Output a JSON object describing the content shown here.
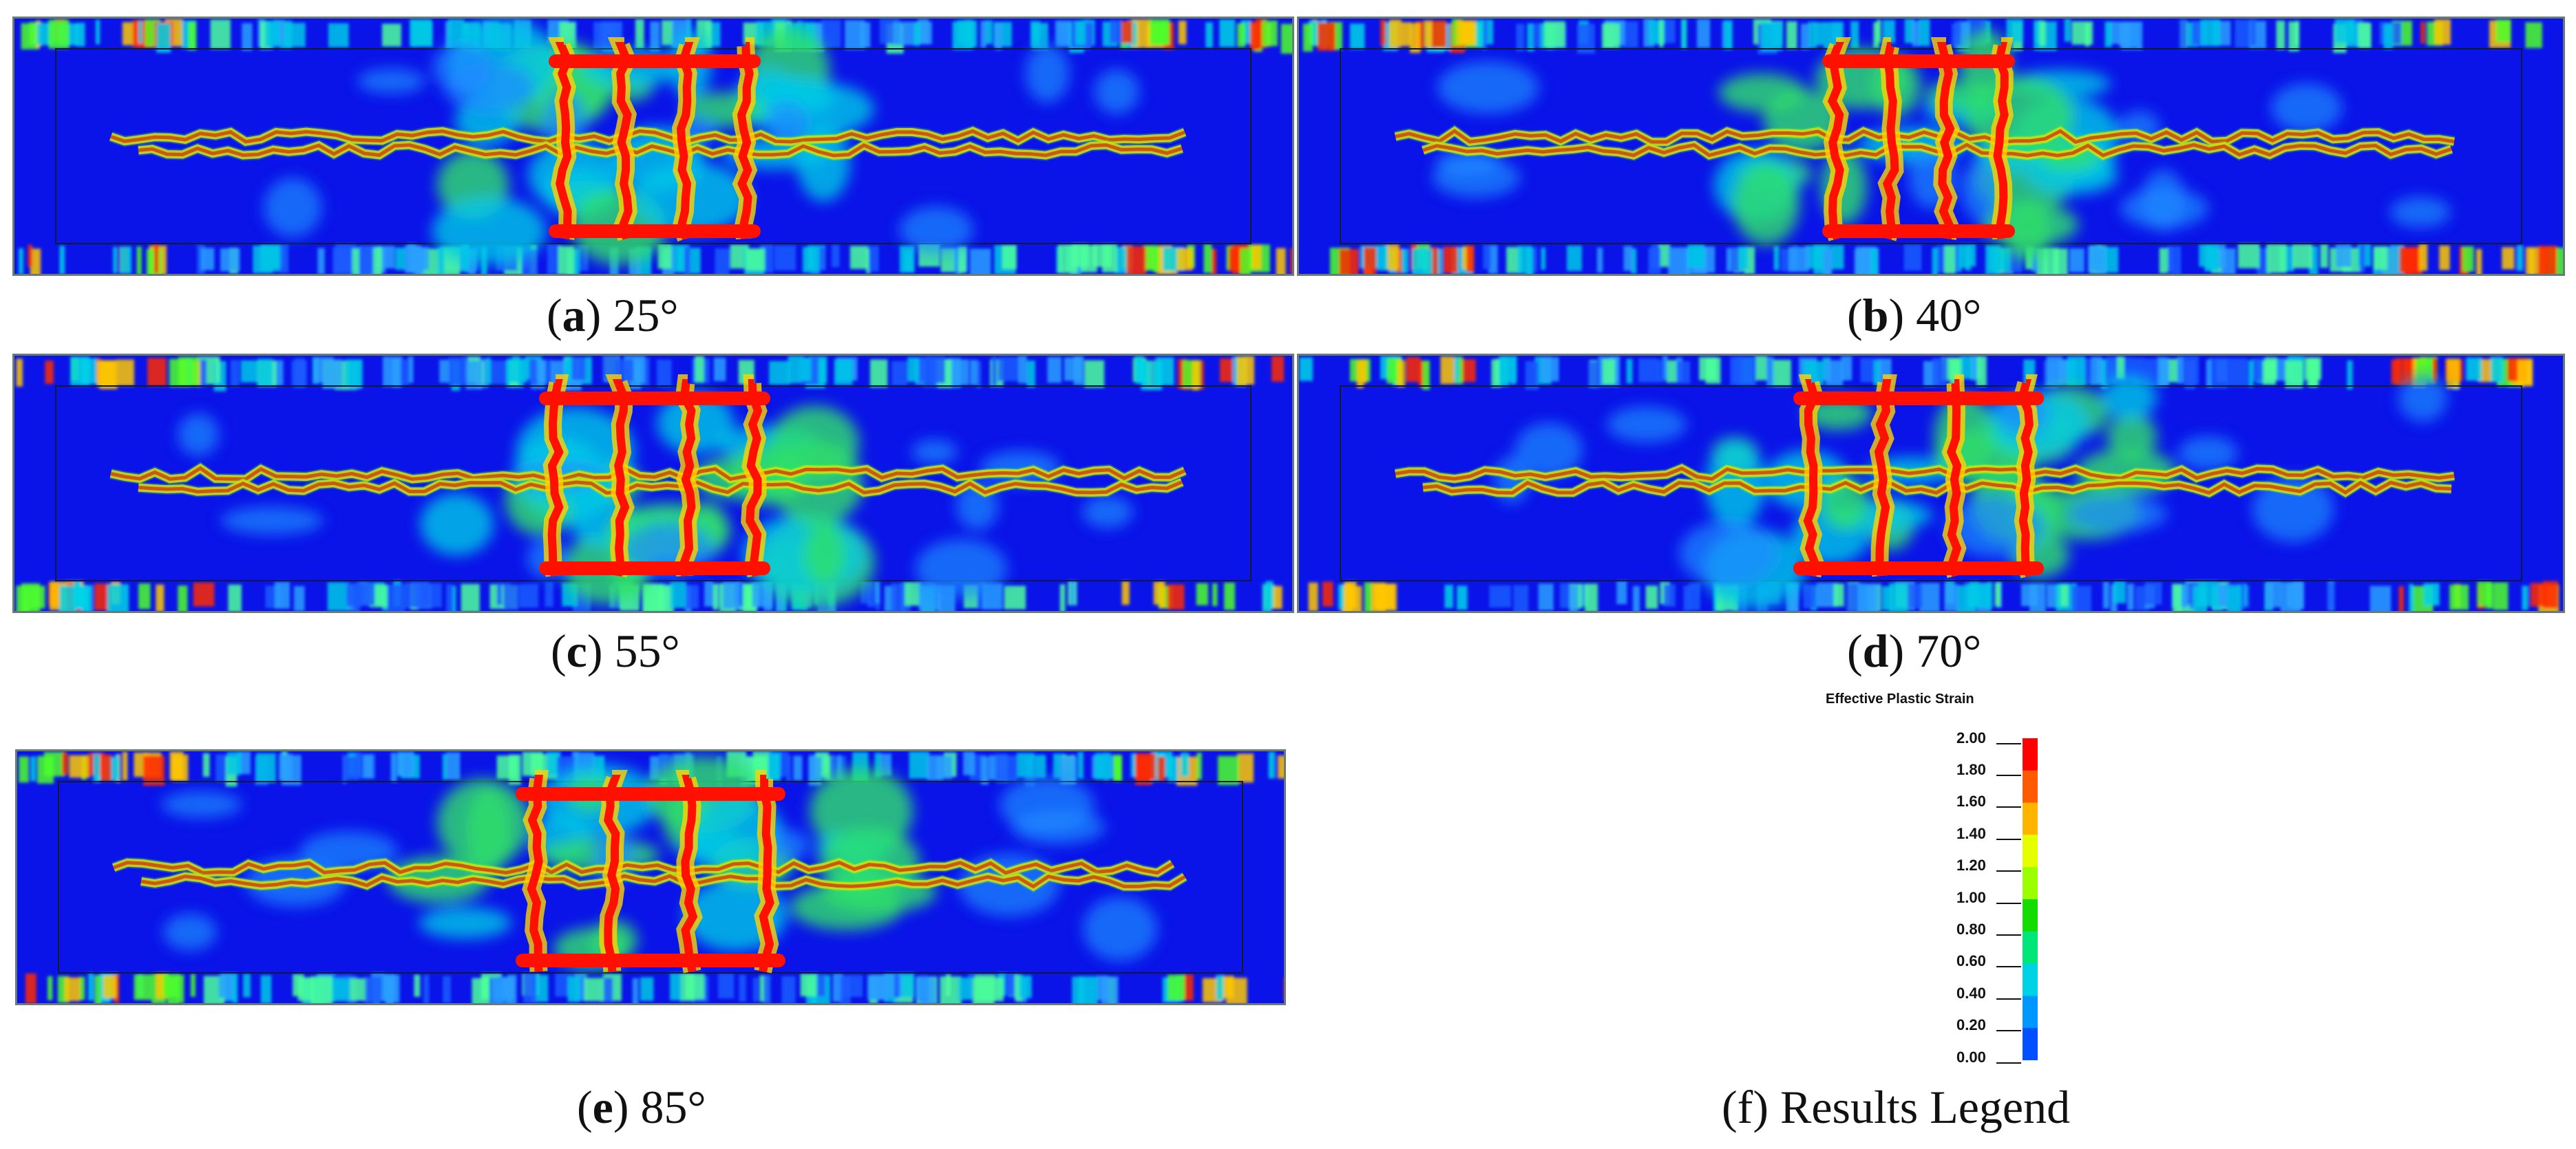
{
  "panels": [
    {
      "id": "a",
      "letter": "a",
      "angle": "25°"
    },
    {
      "id": "b",
      "letter": "b",
      "angle": "40°"
    },
    {
      "id": "c",
      "letter": "c",
      "angle": "55°"
    },
    {
      "id": "d",
      "letter": "d",
      "angle": "70°"
    },
    {
      "id": "e",
      "letter": "e",
      "angle": "85°"
    }
  ],
  "legend": {
    "caption_letter": "f",
    "caption_text": "Results Legend",
    "title": "Effective Plastic Strain",
    "ticks": [
      "2.00",
      "1.80",
      "1.60",
      "1.40",
      "1.20",
      "1.00",
      "0.80",
      "0.60",
      "0.40",
      "0.20",
      "0.00"
    ],
    "colors": [
      "#ff0000",
      "#ff5a00",
      "#ffb400",
      "#e6ff00",
      "#9cff00",
      "#14dc00",
      "#00e678",
      "#00d2e6",
      "#0096ff",
      "#0050ff",
      "#0000ff"
    ]
  }
}
